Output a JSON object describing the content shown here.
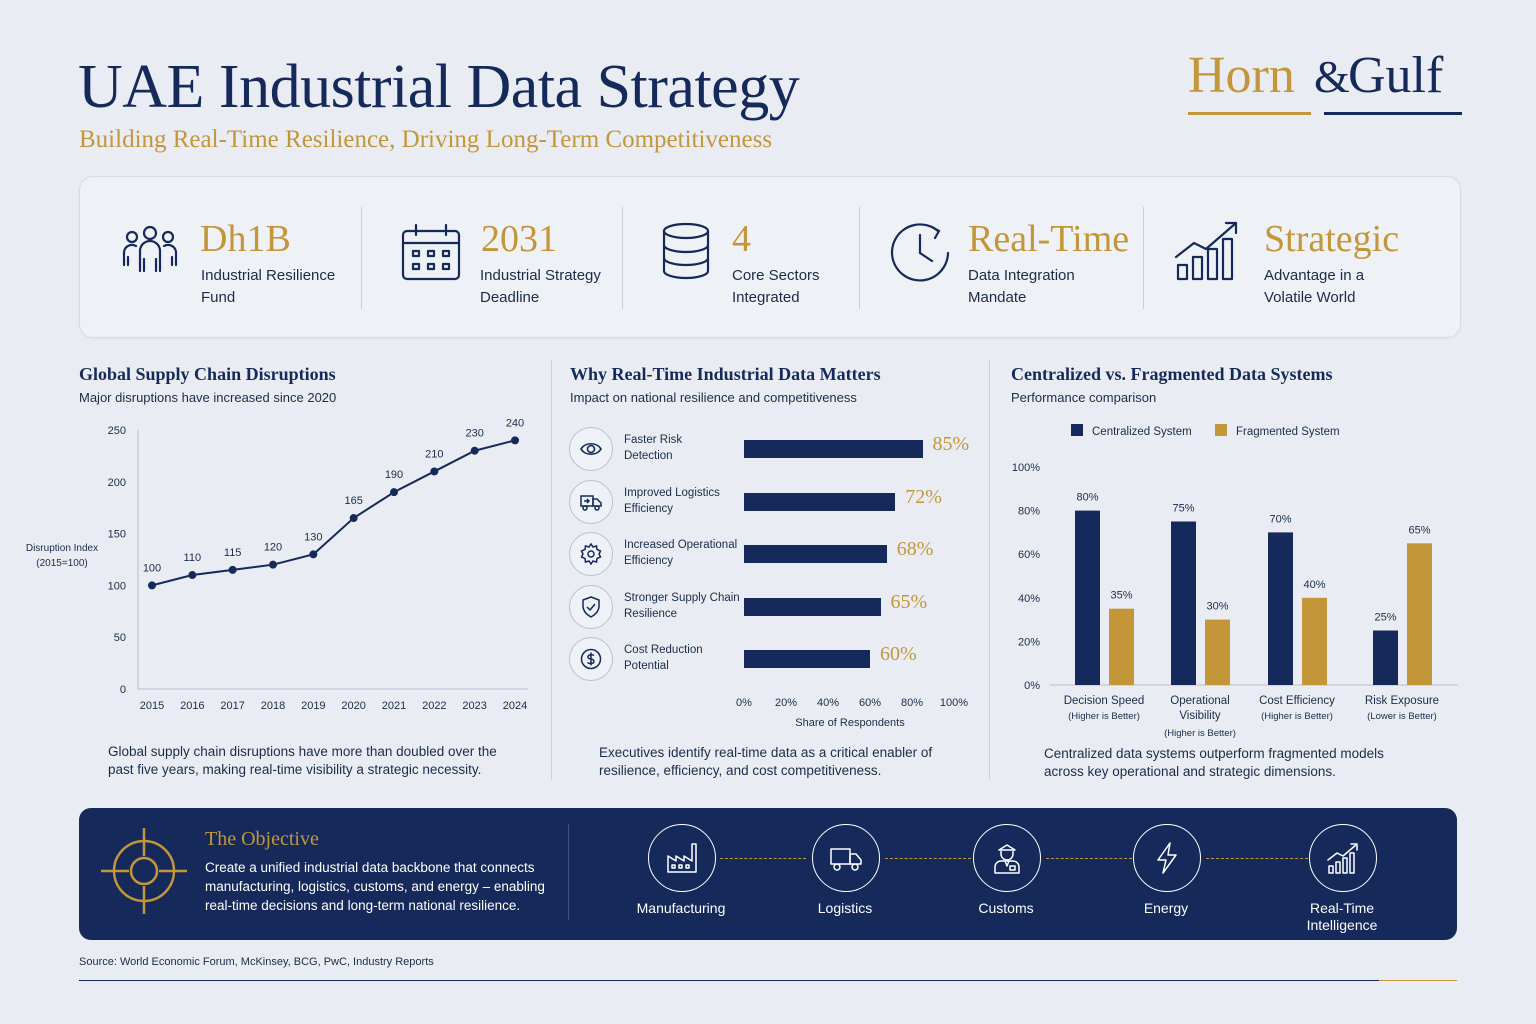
{
  "header": {
    "title": "UAE Industrial Data Strategy",
    "subtitle": "Building Real-Time Resilience, Driving Long-Term Competitiveness",
    "logo": {
      "word1": "Horn",
      "amp": "&",
      "word2": "Gulf"
    }
  },
  "kpis": [
    {
      "value": "Dh1B",
      "label_line1": "Industrial Resilience",
      "label_line2": "Fund",
      "icon": "people-group-icon"
    },
    {
      "value": "2031",
      "label_line1": "Industrial Strategy",
      "label_line2": "Deadline",
      "icon": "calendar-icon"
    },
    {
      "value": "4",
      "label_line1": "Core Sectors",
      "label_line2": "Integrated",
      "icon": "database-icon"
    },
    {
      "value": "Real-Time",
      "label_line1": "Data Integration",
      "label_line2": "Mandate",
      "icon": "clock-icon"
    },
    {
      "value": "Strategic",
      "label_line1": "Advantage in a",
      "label_line2": "Volatile World",
      "icon": "growth-chart-icon"
    }
  ],
  "colors": {
    "navy": "#15295a",
    "gold": "#c3963a",
    "background": "#e9edf3"
  },
  "chart_data": [
    {
      "type": "line",
      "title": "Global Supply Chain Disruptions",
      "subtitle": "Major disruptions have increased since 2020",
      "ylabel": "Disruption Index (2015=100)",
      "ylabel_line1": "Disruption Index",
      "ylabel_line2": "(2015=100)",
      "x": [
        "2015",
        "2016",
        "2017",
        "2018",
        "2019",
        "2020",
        "2021",
        "2022",
        "2023",
        "2024"
      ],
      "values": [
        100,
        110,
        115,
        120,
        130,
        165,
        190,
        210,
        230,
        240
      ],
      "ylim": [
        0,
        250
      ],
      "yticks": [
        0,
        50,
        100,
        150,
        200,
        250
      ],
      "grid": false,
      "footnote": "Global supply chain disruptions have more than doubled over the past five years, making real-time visibility a strategic necessity."
    },
    {
      "type": "bar",
      "orientation": "horizontal",
      "title": "Why Real-Time Industrial Data Matters",
      "subtitle": "Impact on national resilience and competitiveness",
      "categories": [
        "Faster Risk Detection",
        "Improved Logistics Efficiency",
        "Increased Operational Efficiency",
        "Stronger Supply Chain Resilience",
        "Cost Reduction Potential"
      ],
      "category_lines": [
        [
          "Faster Risk",
          "Detection"
        ],
        [
          "Improved Logistics",
          "Efficiency"
        ],
        [
          "Increased Operational",
          "Efficiency"
        ],
        [
          "Stronger Supply Chain",
          "Resilience"
        ],
        [
          "Cost Reduction",
          "Potential"
        ]
      ],
      "icons": [
        "eye-icon",
        "truck-icon",
        "gear-icon",
        "shield-check-icon",
        "dollar-coin-icon"
      ],
      "values": [
        85,
        72,
        68,
        65,
        60
      ],
      "value_labels": [
        "85%",
        "72%",
        "68%",
        "65%",
        "60%"
      ],
      "xlabel": "Share of Respondents",
      "xlim": [
        0,
        100
      ],
      "xticks": [
        "0%",
        "20%",
        "40%",
        "60%",
        "80%",
        "100%"
      ],
      "footnote": "Executives identify real-time data as a critical enabler of resilience, efficiency, and cost competitiveness."
    },
    {
      "type": "bar",
      "title": "Centralized vs. Fragmented Data Systems",
      "subtitle": "Performance comparison",
      "categories": [
        "Decision Speed",
        "Operational Visibility",
        "Cost Efficiency",
        "Risk Exposure"
      ],
      "category_lines": [
        [
          "Decision Speed"
        ],
        [
          "Operational",
          "Visibility"
        ],
        [
          "Cost Efficiency"
        ],
        [
          "Risk Exposure"
        ]
      ],
      "category_notes": [
        "(Higher is Better)",
        "(Higher is Better)",
        "(Higher is Better)",
        "(Lower is Better)"
      ],
      "series": [
        {
          "name": "Centralized System",
          "values": [
            80,
            75,
            70,
            25
          ],
          "color": "#15295a"
        },
        {
          "name": "Fragmented System",
          "values": [
            35,
            30,
            40,
            65
          ],
          "color": "#c3963a"
        }
      ],
      "ylim": [
        0,
        100
      ],
      "yticks": [
        "0%",
        "20%",
        "40%",
        "60%",
        "80%",
        "100%"
      ],
      "legend": "top",
      "footnote": "Centralized data systems outperform fragmented models across key operational and strategic dimensions."
    }
  ],
  "objective": {
    "title": "The Objective",
    "text": "Create a unified industrial data backbone that connects manufacturing, logistics, customs, and energy – enabling real-time decisions and long-term national resilience.",
    "nodes": [
      {
        "label": "Manufacturing",
        "icon": "factory-icon"
      },
      {
        "label": "Logistics",
        "icon": "truck-icon"
      },
      {
        "label": "Customs",
        "icon": "customs-officer-icon"
      },
      {
        "label": "Energy",
        "icon": "lightning-icon"
      },
      {
        "label": "Real-Time Intelligence",
        "label_line1": "Real-Time",
        "label_line2": "Intelligence",
        "icon": "growth-chart-icon"
      }
    ]
  },
  "source": "Source: World Economic Forum, McKinsey, BCG, PwC, Industry Reports"
}
